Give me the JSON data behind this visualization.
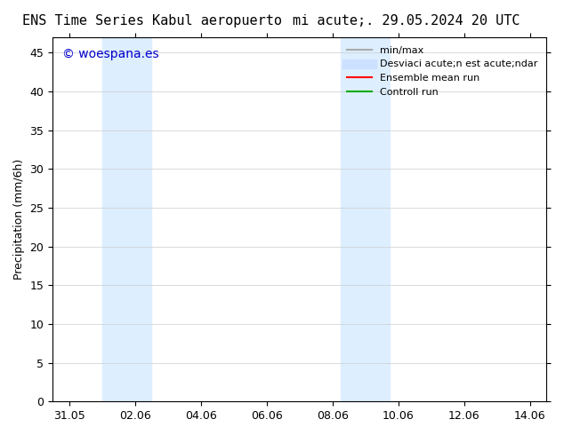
{
  "title_left": "ENS Time Series Kabul aeropuerto",
  "title_right": "mi acute;. 29.05.2024 20 UTC",
  "xlabel": "",
  "ylabel": "Precipitation (mm/6h)",
  "ylim": [
    0,
    47
  ],
  "yticks": [
    0,
    5,
    10,
    15,
    20,
    25,
    30,
    35,
    40,
    45
  ],
  "xtick_labels": [
    "31.05",
    "02.06",
    "04.06",
    "06.06",
    "08.06",
    "10.06",
    "12.06",
    "14.06"
  ],
  "xtick_positions": [
    0.5,
    2.5,
    4.5,
    6.5,
    8.5,
    10.5,
    12.5,
    14.5
  ],
  "shaded_bands": [
    {
      "x_start": 1.5,
      "x_end": 3.0,
      "color": "#ddeeff"
    },
    {
      "x_start": 8.75,
      "x_end": 10.25,
      "color": "#ddeeff"
    }
  ],
  "background_color": "#ffffff",
  "plot_bg_color": "#ffffff",
  "watermark_text": "© woespana.es",
  "watermark_color": "#0000cc",
  "legend_entries": [
    {
      "label": "min/max",
      "color": "#aaaaaa",
      "lw": 1.5
    },
    {
      "label": "Desviaci acute;n est acute;ndar",
      "color": "#cce0ff",
      "lw": 8
    },
    {
      "label": "Ensemble mean run",
      "color": "#ff0000",
      "lw": 1.5
    },
    {
      "label": "Controll run",
      "color": "#00aa00",
      "lw": 1.5
    }
  ],
  "spine_color": "#000000",
  "tick_color": "#000000",
  "font_size_title": 11,
  "font_size_axis": 9,
  "font_size_legend": 8,
  "font_size_watermark": 10
}
